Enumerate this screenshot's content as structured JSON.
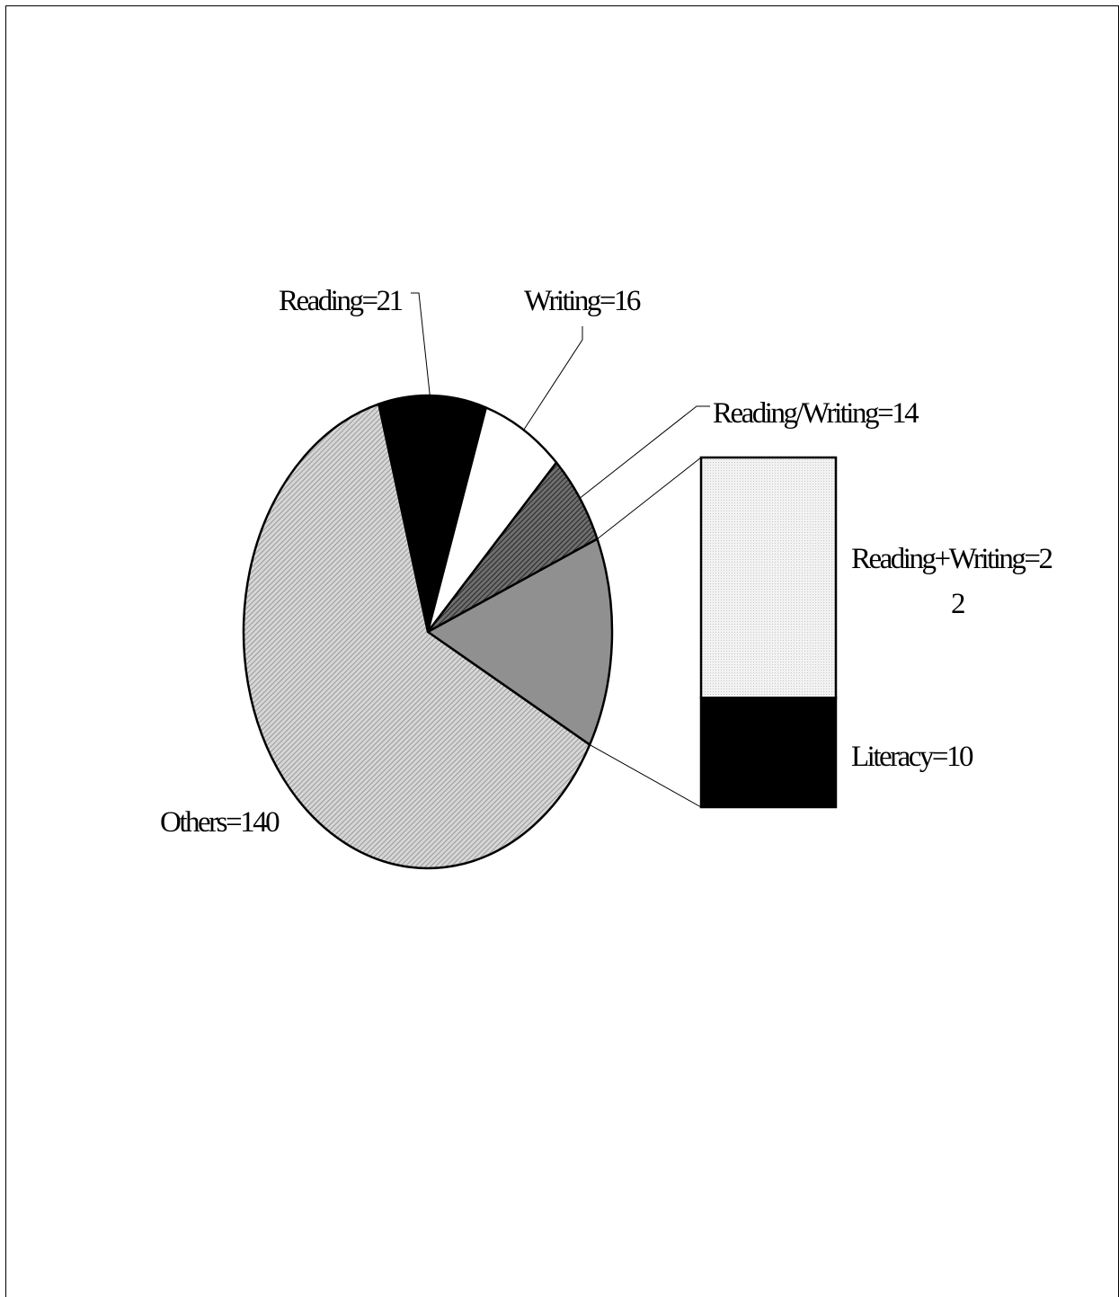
{
  "chart_data": {
    "type": "pie",
    "slices": [
      {
        "label": "Reading",
        "value": 21,
        "text": "Reading=21",
        "fill": "solid-black"
      },
      {
        "label": "Writing",
        "value": 16,
        "text": "Writing=16",
        "fill": "white"
      },
      {
        "label": "Reading/Writing",
        "value": 14,
        "text": "Reading/Writing=14",
        "fill": "dark-gray-hatch"
      },
      {
        "label": "Reading+Writing / Literacy",
        "value": 32,
        "text": "",
        "fill": "medium-gray",
        "exploded_to_bar": true
      },
      {
        "label": "Others",
        "value": 140,
        "text": "Others=140",
        "fill": "light-gray-hatch"
      }
    ],
    "breakout_bar": {
      "segments": [
        {
          "label": "Reading+Writing",
          "value": 22,
          "text_line1": "Reading+Writing=2",
          "text_line2": "2",
          "fill": "dotted-light-gray"
        },
        {
          "label": "Literacy",
          "value": 10,
          "text": "Literacy=10",
          "fill": "solid-black"
        }
      ]
    },
    "colors": {
      "black": "#000000",
      "white": "#ffffff",
      "dark_gray": "#555555",
      "medium_gray": "#909090",
      "light_gray": "#c4c4c4",
      "dotted_gray": "#eeeeee"
    }
  }
}
